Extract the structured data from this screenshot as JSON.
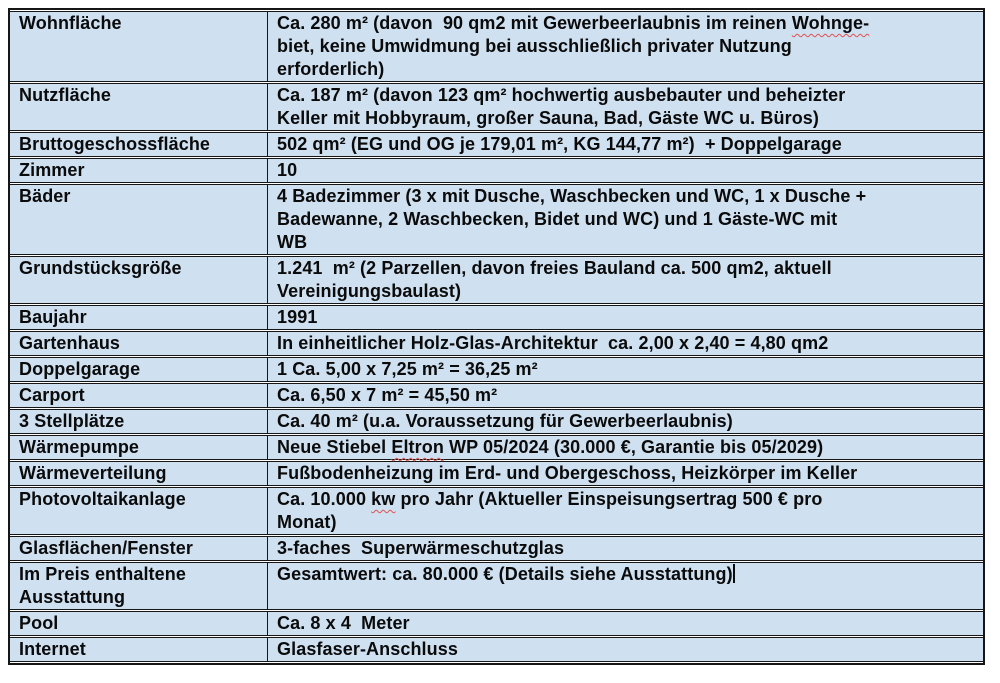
{
  "colors": {
    "cell_bg": "#cfe0f1",
    "border": "#161616",
    "text": "#0b0b0b",
    "spellcheck_underline": "#e0524d",
    "page_bg": "#ffffff"
  },
  "table": {
    "rows": [
      {
        "label": "Wohnfläche",
        "value": [
          {
            "t": "Ca. 280 m² (davon  90 qm2 mit Gewerbeerlaubnis im reinen "
          },
          {
            "t": "Wohnge-",
            "wavy": true
          },
          {
            "t": "\nbiet, keine Umwidmung bei ausschließlich privater Nutzung\nerforderlich)"
          }
        ]
      },
      {
        "label": "Nutzfläche",
        "value": [
          {
            "t": "Ca. 187 m² (davon 123 qm² hochwertig ausbebauter und beheizter\nKeller mit Hobbyraum, großer Sauna, Bad, Gäste WC u. Büros)"
          }
        ]
      },
      {
        "label": "Bruttogeschossfläche",
        "value": [
          {
            "t": "502 qm² (EG und OG je 179,01 m², KG 144,77 m²)  + Doppelgarage"
          }
        ]
      },
      {
        "label": "Zimmer",
        "value": [
          {
            "t": "10"
          }
        ]
      },
      {
        "label": "Bäder",
        "value": [
          {
            "t": "4 Badezimmer (3 x mit Dusche, Waschbecken und WC, 1 x Dusche +\nBadewanne, 2 Waschbecken, Bidet und WC) und 1 Gäste-WC mit\nWB"
          }
        ]
      },
      {
        "label": "Grundstücksgröße",
        "value": [
          {
            "t": "1.241  m² (2 Parzellen, davon freies Bauland ca. 500 qm2, aktuell\nVereinigungsbaulast)"
          }
        ]
      },
      {
        "label": "Baujahr",
        "value": [
          {
            "t": "1991"
          }
        ]
      },
      {
        "label": "Gartenhaus",
        "value": [
          {
            "t": "In einheitlicher Holz-Glas-Architektur  ca. 2,00 x 2,40 = 4,80 qm2"
          }
        ]
      },
      {
        "label": "Doppelgarage",
        "value": [
          {
            "t": "1 Ca. 5,00 x 7,25 m² = 36,25 m²"
          }
        ]
      },
      {
        "label": "Carport",
        "value": [
          {
            "t": "Ca. 6,50 x 7 m² = 45,50 m²"
          }
        ]
      },
      {
        "label": "3 Stellplätze",
        "value": [
          {
            "t": "Ca. 40 m² (u.a. Voraussetzung für Gewerbeerlaubnis)"
          }
        ]
      },
      {
        "label": "Wärmepumpe",
        "value": [
          {
            "t": "Neue Stiebel "
          },
          {
            "t": "Eltron",
            "wavy": true
          },
          {
            "t": " WP 05/2024 (30.000 €, Garantie bis 05/2029)"
          }
        ]
      },
      {
        "label": "Wärmeverteilung",
        "value": [
          {
            "t": "Fußbodenheizung im Erd- und Obergeschoss, Heizkörper im Keller"
          }
        ]
      },
      {
        "label": "Photovoltaikanlage",
        "value": [
          {
            "t": "Ca. 10.000 "
          },
          {
            "t": "kw",
            "wavy": true
          },
          {
            "t": " pro Jahr (Aktueller Einspeisungsertrag 500 € pro\nMonat)"
          }
        ]
      },
      {
        "label": "Glasflächen/Fenster",
        "value": [
          {
            "t": "3-faches  Superwärmeschutzglas"
          }
        ]
      },
      {
        "label": "Im Preis enthaltene\nAusstattung",
        "value": [
          {
            "t": "Gesamtwert: ca. 80.000 € (Details siehe Ausstattung)"
          },
          {
            "caret": true
          }
        ]
      },
      {
        "label": "Pool",
        "value": [
          {
            "t": "Ca. 8 x 4  Meter"
          }
        ]
      },
      {
        "label": "Internet",
        "value": [
          {
            "t": "Glasfaser-Anschluss"
          }
        ]
      }
    ]
  }
}
